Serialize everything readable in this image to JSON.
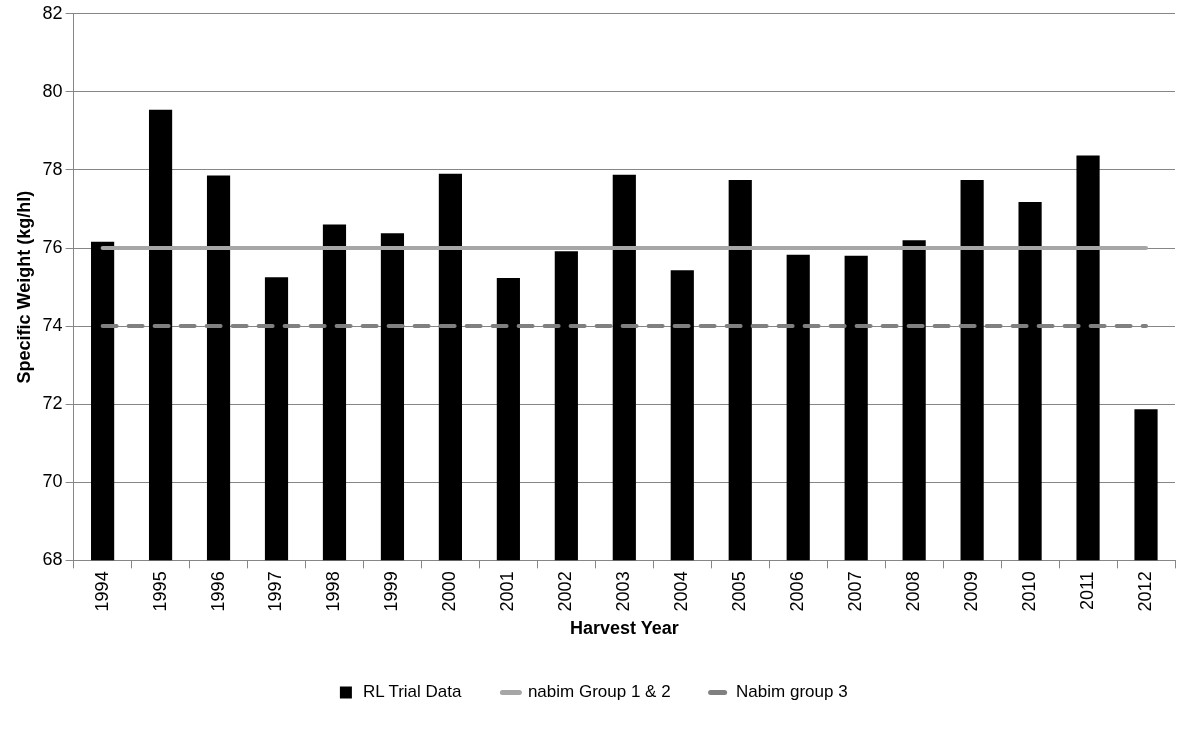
{
  "chart_data": {
    "type": "bar",
    "xlabel": "Harvest Year",
    "ylabel": "Specific Weight (kg/hl)",
    "categories": [
      "1994",
      "1995",
      "1996",
      "1997",
      "1998",
      "1999",
      "2000",
      "2001",
      "2002",
      "2003",
      "2004",
      "2005",
      "2006",
      "2007",
      "2008",
      "2009",
      "2010",
      "2011",
      "2012"
    ],
    "series": [
      {
        "name": "RL Trial Data",
        "color": "#000000",
        "values": [
          76.16,
          79.54,
          77.86,
          75.25,
          76.6,
          76.38,
          77.9,
          75.23,
          75.92,
          77.88,
          75.43,
          77.74,
          75.83,
          75.8,
          76.2,
          77.74,
          77.18,
          78.37,
          71.87
        ]
      },
      {
        "name": "nabim Group 1 & 2",
        "type": "line",
        "color": "#a6a6a6",
        "line_style": "solid",
        "values": [
          76,
          76,
          76,
          76,
          76,
          76,
          76,
          76,
          76,
          76,
          76,
          76,
          76,
          76,
          76,
          76,
          76,
          76,
          76
        ]
      },
      {
        "name": "Nabim group 3",
        "type": "line",
        "color": "#808080",
        "line_style": "dashed",
        "values": [
          74,
          74,
          74,
          74,
          74,
          74,
          74,
          74,
          74,
          74,
          74,
          74,
          74,
          74,
          74,
          74,
          74,
          74,
          74
        ]
      }
    ],
    "ylim": [
      68,
      82
    ],
    "yticks": [
      68,
      70,
      72,
      74,
      76,
      78,
      80,
      82
    ],
    "grid": "y",
    "legend": "bottom",
    "marker": "none"
  }
}
